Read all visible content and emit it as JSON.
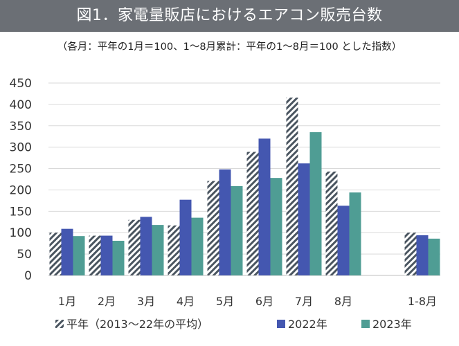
{
  "header": {
    "title": "図1．家電量販店におけるエアコン販売台数",
    "subtitle": "（各月：平年の1月＝100、1〜8月累計：平年の1〜8月＝100 とした指数）"
  },
  "colors": {
    "title_bg": "#6b6f75",
    "normal_hatch": "#4a5560",
    "y2022": "#4457b0",
    "y2023": "#4f9d94",
    "grid": "#d9d9d9"
  },
  "chart_data": {
    "type": "bar",
    "categories": [
      "1月",
      "2月",
      "3月",
      "4月",
      "5月",
      "6月",
      "7月",
      "8月",
      "1-8月"
    ],
    "series": [
      {
        "name": "平年（2013〜22年の平均）",
        "values": [
          100,
          93,
          130,
          117,
          221,
          289,
          416,
          243,
          100
        ],
        "pattern": "hatched"
      },
      {
        "name": "2022年",
        "values": [
          109,
          93,
          137,
          177,
          248,
          320,
          262,
          163,
          94
        ]
      },
      {
        "name": "2023年",
        "values": [
          92,
          81,
          118,
          135,
          209,
          228,
          335,
          194,
          86
        ]
      }
    ],
    "ylim": [
      0,
      450
    ],
    "yticks": [
      0,
      50,
      100,
      150,
      200,
      250,
      300,
      350,
      400,
      450
    ],
    "grid": true,
    "legend_position": "bottom"
  }
}
